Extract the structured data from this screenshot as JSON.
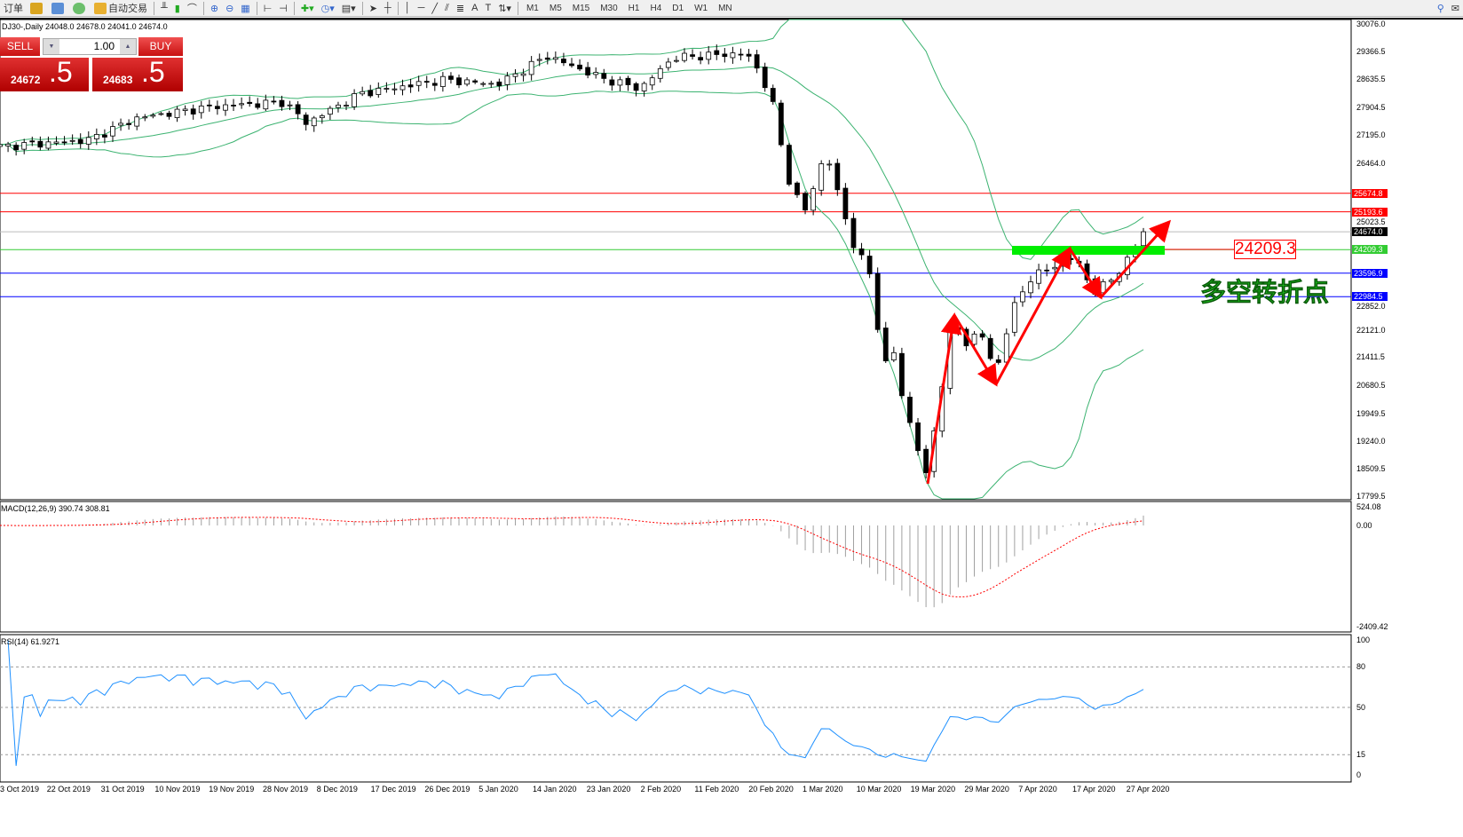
{
  "toolbar": {
    "new_order": "订单",
    "auto_trade": "自动交易",
    "timeframes": [
      "M1",
      "M5",
      "M15",
      "M30",
      "H1",
      "H4",
      "D1",
      "W1",
      "MN"
    ],
    "icons": [
      "profiles-icon",
      "market-watch-icon",
      "navigator-icon",
      "auto-trading-icon",
      "bar-chart-icon",
      "candlestick-icon",
      "line-chart-icon",
      "zoom-in-icon",
      "zoom-out-icon",
      "tile-windows-icon",
      "chart-shift-icon",
      "autoscroll-icon",
      "indicators-icon",
      "periods-icon",
      "templates-icon",
      "cursor-icon",
      "crosshair-icon",
      "vertical-line-icon",
      "horizontal-line-icon",
      "trendline-icon",
      "equidistant-channel-icon",
      "fibonacci-icon",
      "text-icon",
      "text-label-icon",
      "arrows-icon"
    ]
  },
  "chart": {
    "title": "DJ30-,Daily  24048.0 24678.0 24041.0 24674.0",
    "symbol": "DJ30-",
    "period": "Daily",
    "ohlc": {
      "open": 24048.0,
      "high": 24678.0,
      "low": 24041.0,
      "close": 24674.0
    }
  },
  "trade": {
    "sell_label": "SELL",
    "buy_label": "BUY",
    "lot": "1.00",
    "sell_main": "24672",
    "sell_frac": ".5",
    "buy_main": "24683",
    "buy_frac": ".5"
  },
  "price_axis": {
    "labels": [
      "30076.0",
      "29366.5",
      "28635.5",
      "27904.5",
      "27195.0",
      "26464.0",
      "25023.5",
      "22852.0",
      "22121.0",
      "21411.5",
      "20680.5",
      "19949.5",
      "19240.0",
      "18509.5",
      "17799.5"
    ],
    "range": [
      17799.5,
      30076.0
    ]
  },
  "levels": [
    {
      "price": "25674.8",
      "color": "#ff0000"
    },
    {
      "price": "25193.6",
      "color": "#ff0000"
    },
    {
      "price": "24674.0",
      "color": "#000000",
      "bid": true
    },
    {
      "price": "24209.3",
      "color": "#33cc33"
    },
    {
      "price": "23596.9",
      "color": "#0000ff"
    },
    {
      "price": "22984.5",
      "color": "#0000ff"
    }
  ],
  "annotations": {
    "price_box": "24209.3",
    "chinese_text": "多空转折点",
    "arrow_color": "#ff0000",
    "zone_color": "#00ee00"
  },
  "macd": {
    "title": "MACD(12,26,9) 390.74 308.81",
    "axis": [
      "524.08",
      "0.00",
      "-2409.42"
    ],
    "range": [
      -2409.42,
      524.08
    ]
  },
  "rsi": {
    "title": "RSI(14) 61.9271",
    "axis": [
      "100",
      "80",
      "50",
      "15",
      "0"
    ],
    "levels": [
      80,
      50,
      15
    ]
  },
  "dates": [
    "3 Oct 2019",
    "22 Oct 2019",
    "31 Oct 2019",
    "10 Nov 2019",
    "19 Nov 2019",
    "28 Nov 2019",
    "8 Dec 2019",
    "17 Dec 2019",
    "26 Dec 2019",
    "5 Jan 2020",
    "14 Jan 2020",
    "23 Jan 2020",
    "2 Feb 2020",
    "11 Feb 2020",
    "20 Feb 2020",
    "1 Mar 2020",
    "10 Mar 2020",
    "19 Mar 2020",
    "29 Mar 2020",
    "7 Apr 2020",
    "17 Apr 2020",
    "27 Apr 2020"
  ],
  "colors": {
    "bollinger": "#3cb371",
    "macd_hist": "#a0a0a0",
    "macd_signal": "#ff0000",
    "rsi": "#1e90ff"
  },
  "chart_data": {
    "type": "candlestick",
    "close_path": [
      [
        "2019-09-30",
        26891
      ],
      [
        "2019-10-16",
        27053
      ],
      [
        "2019-10-25",
        27630
      ],
      [
        "2019-11-08",
        27930
      ],
      [
        "2019-11-21",
        28045
      ],
      [
        "2019-11-25",
        27500
      ],
      [
        "2019-12-05",
        28276
      ],
      [
        "2019-12-20",
        28622
      ],
      [
        "2019-12-30",
        28507
      ],
      [
        "2020-01-08",
        29245
      ],
      [
        "2020-01-18",
        28668
      ],
      [
        "2020-01-25",
        28391
      ],
      [
        "2020-01-31",
        29199
      ],
      [
        "2020-02-13",
        29315
      ],
      [
        "2020-02-15",
        29040
      ],
      [
        "2020-02-18",
        28160
      ],
      [
        "2020-02-21",
        26083
      ],
      [
        "2020-02-24",
        25160
      ],
      [
        "2020-02-28",
        26776
      ],
      [
        "2020-03-01",
        25737
      ],
      [
        "2020-03-04",
        24352
      ],
      [
        "2020-03-08",
        23314
      ],
      [
        "2020-03-09",
        20775
      ],
      [
        "2020-03-11",
        21813
      ],
      [
        "2020-03-13",
        20314
      ],
      [
        "2020-03-16",
        18929
      ],
      [
        "2020-03-17",
        18120
      ],
      [
        "2020-03-20",
        20545
      ],
      [
        "2020-03-22",
        22390
      ],
      [
        "2020-03-25",
        21700
      ],
      [
        "2020-03-27",
        22160
      ],
      [
        "2020-03-30",
        21005
      ],
      [
        "2020-04-02",
        22620
      ],
      [
        "2020-04-05",
        23430
      ],
      [
        "2020-04-08",
        23660
      ],
      [
        "2020-04-12",
        24000
      ],
      [
        "2020-04-14",
        23900
      ],
      [
        "2020-04-17",
        23083
      ],
      [
        "2020-04-20",
        23430
      ],
      [
        "2020-04-23",
        23890
      ],
      [
        "2020-04-26",
        24674
      ]
    ]
  }
}
